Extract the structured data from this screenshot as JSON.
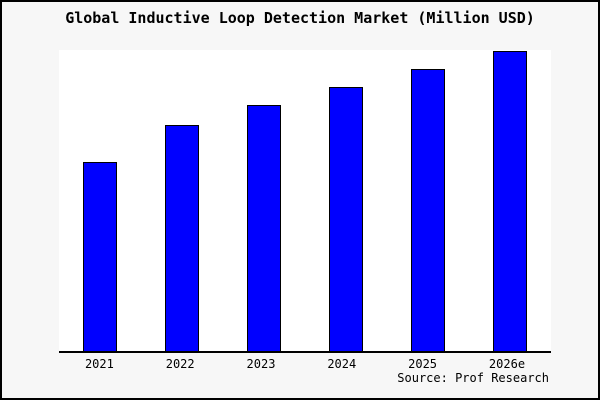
{
  "title": "Global Inductive Loop Detection Market (Million USD)",
  "source_note": "Source: Prof Research",
  "colors": {
    "canvas_background": "#f7f7f7",
    "plot_background": "#ffffff",
    "frame_border": "#000000",
    "bar_fill": "#0000ff",
    "bar_border": "#000000",
    "axis_line": "#000000",
    "text": "#000000"
  },
  "chart_data": {
    "type": "bar",
    "title": "Global Inductive Loop Detection Market (Million USD)",
    "categories": [
      "2021",
      "2022",
      "2023",
      "2024",
      "2025",
      "2026e"
    ],
    "values_pct_of_tallest_bar": [
      63.0,
      75.4,
      81.9,
      88.1,
      94.1,
      100.0
    ],
    "bar_heights_pct_of_plot": [
      62.8,
      75.2,
      81.7,
      87.8,
      93.8,
      99.7
    ],
    "xlabel": "",
    "ylabel": "",
    "y_axis_tick_labels": [],
    "grid": "off",
    "legend": "none",
    "bar_color": "#0000ff",
    "bar_border_color": "#000000",
    "annotation": "Source: Prof Research"
  }
}
